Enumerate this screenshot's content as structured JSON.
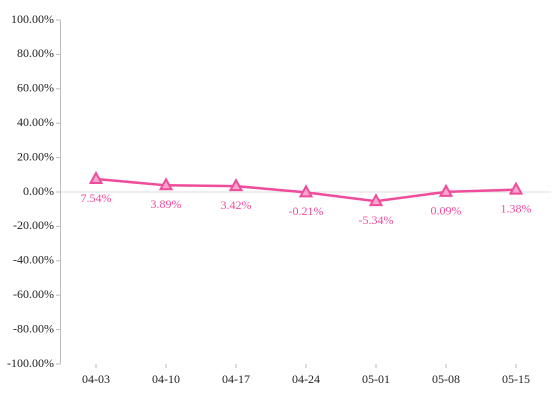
{
  "chart_data": {
    "type": "line",
    "categories": [
      "04-03",
      "04-10",
      "04-17",
      "04-24",
      "05-01",
      "05-08",
      "05-15"
    ],
    "series": [
      {
        "color": "#ef4c9c",
        "values": [
          7.54,
          3.89,
          3.42,
          -0.21,
          -5.34,
          0.09,
          1.38
        ],
        "value_labels": [
          "7.54%",
          "3.89%",
          "3.42%",
          "-0.21%",
          "-5.34%",
          "0.09%",
          "1.38%"
        ]
      }
    ],
    "ylim": [
      -100,
      100
    ],
    "yticks": [
      {
        "value": -100,
        "label": "-100.00%"
      },
      {
        "value": -80,
        "label": "-80.00%"
      },
      {
        "value": -60,
        "label": "-60.00%"
      },
      {
        "value": -40,
        "label": "-40.00%"
      },
      {
        "value": -20,
        "label": "-20.00%"
      },
      {
        "value": 0,
        "label": "0.00%"
      },
      {
        "value": 20,
        "label": "20.00%"
      },
      {
        "value": 40,
        "label": "40.00%"
      },
      {
        "value": 60,
        "label": "60.00%"
      },
      {
        "value": 80,
        "label": "80.00%"
      },
      {
        "value": 100,
        "label": "100.00%"
      }
    ],
    "marker": "triangle"
  }
}
